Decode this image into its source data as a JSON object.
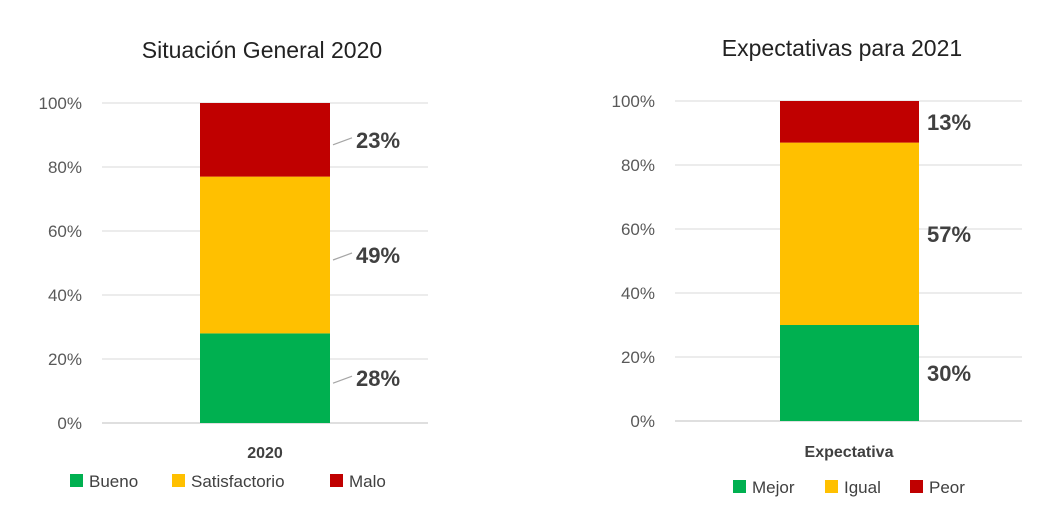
{
  "chart_data": [
    {
      "type": "bar",
      "stacked": true,
      "percent": true,
      "title": "Situación General 2020",
      "xlabel": "",
      "ylabel": "",
      "categories": [
        "2020"
      ],
      "ylim": [
        0,
        100
      ],
      "yticks": [
        "0%",
        "20%",
        "40%",
        "60%",
        "80%",
        "100%"
      ],
      "series": [
        {
          "name": "Bueno",
          "values": [
            28
          ],
          "label": "28%",
          "color": "#00b050"
        },
        {
          "name": "Satisfactorio",
          "values": [
            49
          ],
          "label": "49%",
          "color": "#ffc000"
        },
        {
          "name": "Malo",
          "values": [
            23
          ],
          "label": "23%",
          "color": "#c00000"
        }
      ],
      "legend": "bottom",
      "grid": true
    },
    {
      "type": "bar",
      "stacked": true,
      "percent": true,
      "title": "Expectativas para 2021",
      "xlabel": "",
      "ylabel": "",
      "categories": [
        "Expectativa"
      ],
      "ylim": [
        0,
        100
      ],
      "yticks": [
        "0%",
        "20%",
        "40%",
        "60%",
        "80%",
        "100%"
      ],
      "series": [
        {
          "name": "Mejor",
          "values": [
            30
          ],
          "label": "30%",
          "color": "#00b050"
        },
        {
          "name": "Igual",
          "values": [
            57
          ],
          "label": "57%",
          "color": "#ffc000"
        },
        {
          "name": "Peor",
          "values": [
            13
          ],
          "label": "13%",
          "color": "#c00000"
        }
      ],
      "legend": "bottom",
      "grid": true
    }
  ]
}
